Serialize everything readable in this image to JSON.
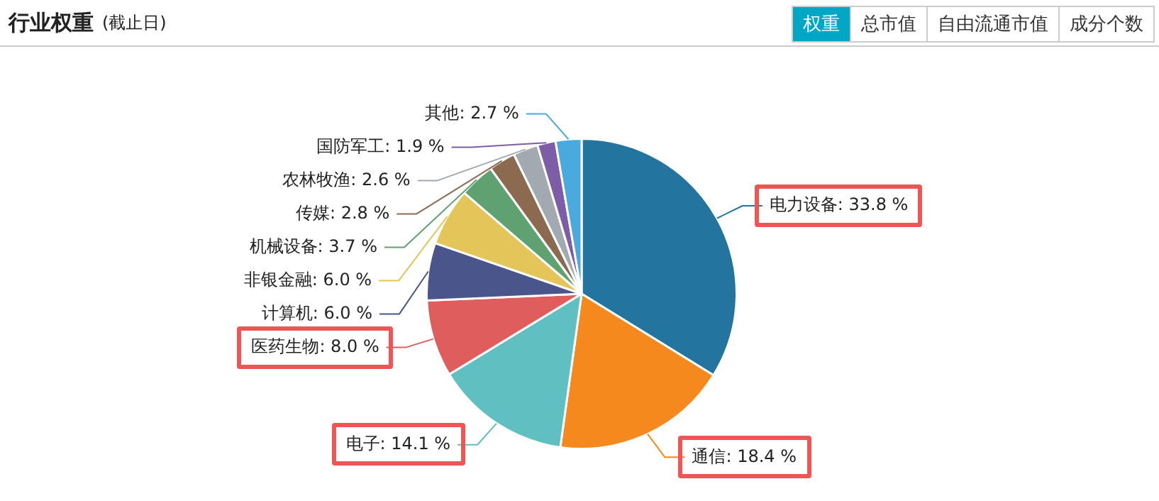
{
  "chart_data": {
    "type": "pie",
    "title": "行业权重",
    "subtitle": "(截止日)",
    "annotations": [
      "权重",
      "总市值",
      "自由流通市值",
      "成分个数"
    ],
    "categories": [
      "电力设备",
      "通信",
      "电子",
      "医药生物",
      "计算机",
      "非银金融",
      "机械设备",
      "传媒",
      "农林牧渔",
      "国防军工",
      "其他"
    ],
    "values": [
      33.8,
      18.4,
      14.1,
      8.0,
      6.0,
      6.0,
      3.7,
      2.8,
      2.6,
      1.9,
      2.7
    ],
    "value_labels": [
      "33.8 %",
      "18.4 %",
      "14.1 %",
      "8.0 %",
      "6.0 %",
      "6.0 %",
      "3.7 %",
      "2.8 %",
      "2.6 %",
      "1.9 %",
      "2.7 %"
    ],
    "colors": [
      "#23759f",
      "#f5891d",
      "#5fbfc1",
      "#e05d5d",
      "#4a558c",
      "#e4c55a",
      "#5fa170",
      "#8c6a50",
      "#a2a9b1",
      "#7d5ca8",
      "#4aa9dd"
    ],
    "legend": false
  }
}
